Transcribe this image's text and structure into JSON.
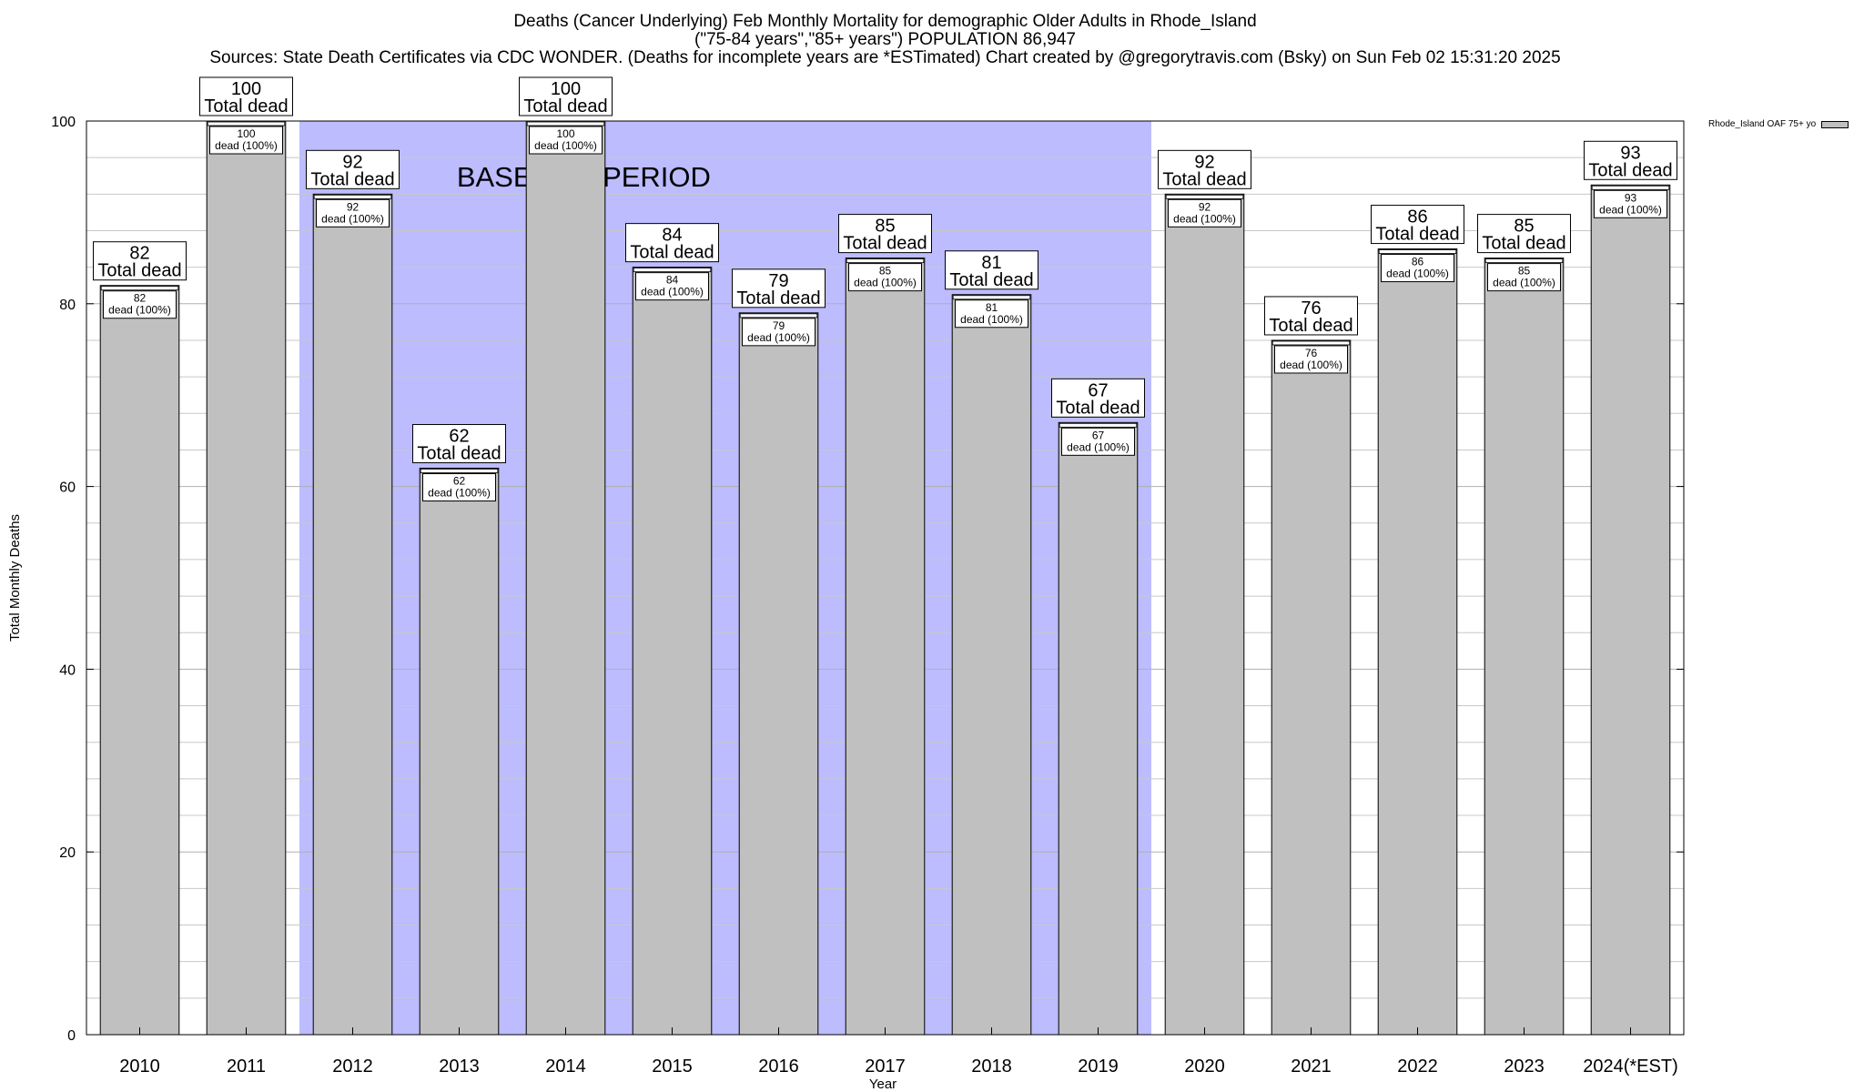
{
  "chart_data": {
    "type": "bar",
    "title_lines": [
      "Deaths (Cancer Underlying) Feb Monthly Mortality for demographic Older Adults in Rhode_Island",
      "(\"75-84 years\",\"85+ years\") POPULATION 86,947",
      "Sources: State Death Certificates via CDC WONDER. (Deaths for incomplete years are *ESTimated)                Chart created by @gregorytravis.com (Bsky) on Sun Feb 02 15:31:20 2025"
    ],
    "xlabel": "Year",
    "ylabel": "Total Monthly Deaths",
    "ylim": [
      0,
      100
    ],
    "yticks": [
      0,
      20,
      40,
      60,
      80,
      100
    ],
    "grid": true,
    "categories": [
      "2010",
      "2011",
      "2012",
      "2013",
      "2014",
      "2015",
      "2016",
      "2017",
      "2018",
      "2019",
      "2020",
      "2021",
      "2022",
      "2023",
      "2024(*EST)"
    ],
    "series": [
      {
        "name": "Rhode_Island OAF 75+ yo",
        "values": [
          82,
          100,
          92,
          62,
          100,
          84,
          79,
          85,
          81,
          67,
          92,
          76,
          86,
          85,
          93
        ],
        "color": "#c0c0c0"
      }
    ],
    "total_label": "Total dead",
    "inner_label": "dead (100%)",
    "baseline": {
      "label": "BASELINE PERIOD",
      "from": "2012",
      "to": "2019",
      "color": "#bcbcff"
    },
    "legend_position": "top-right"
  }
}
